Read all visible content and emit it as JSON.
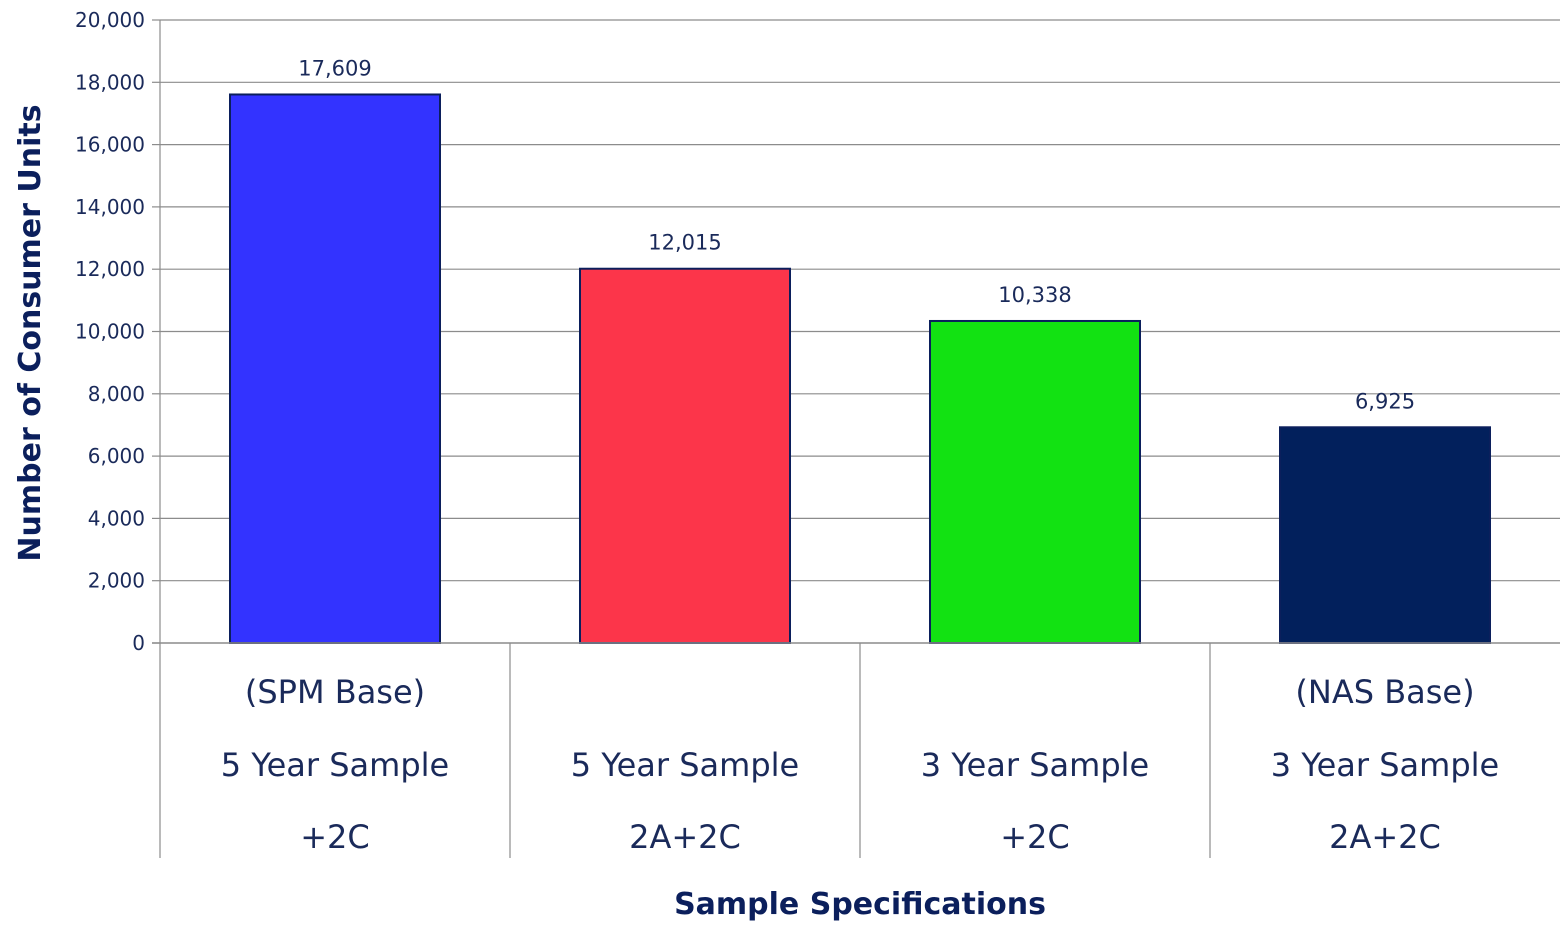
{
  "chart_data": {
    "type": "bar",
    "xlabel": "Sample Specifications",
    "ylabel": "Number of Consumer Units",
    "ylim": [
      0,
      20000
    ],
    "yticks": [
      0,
      2000,
      4000,
      6000,
      8000,
      10000,
      12000,
      14000,
      16000,
      18000,
      20000
    ],
    "ytick_labels": [
      "0",
      "2,000",
      "4,000",
      "6,000",
      "8,000",
      "10,000",
      "12,000",
      "14,000",
      "16,000",
      "18,000",
      "20,000"
    ],
    "grid": true,
    "categories": [
      {
        "lines": [
          "(SPM Base)",
          "5 Year Sample",
          "+2C"
        ],
        "value": 17609,
        "value_label": "17,609",
        "color": "#3333ff"
      },
      {
        "lines": [
          "",
          "5 Year Sample",
          "2A+2C"
        ],
        "value": 12015,
        "value_label": "12,015",
        "color": "#fc354a"
      },
      {
        "lines": [
          "",
          "3 Year Sample",
          "+2C"
        ],
        "value": 10338,
        "value_label": "10,338",
        "color": "#12e212"
      },
      {
        "lines": [
          "(NAS Base)",
          "3 Year Sample",
          "2A+2C"
        ],
        "value": 6925,
        "value_label": "6,925",
        "color": "#02205c"
      }
    ]
  }
}
